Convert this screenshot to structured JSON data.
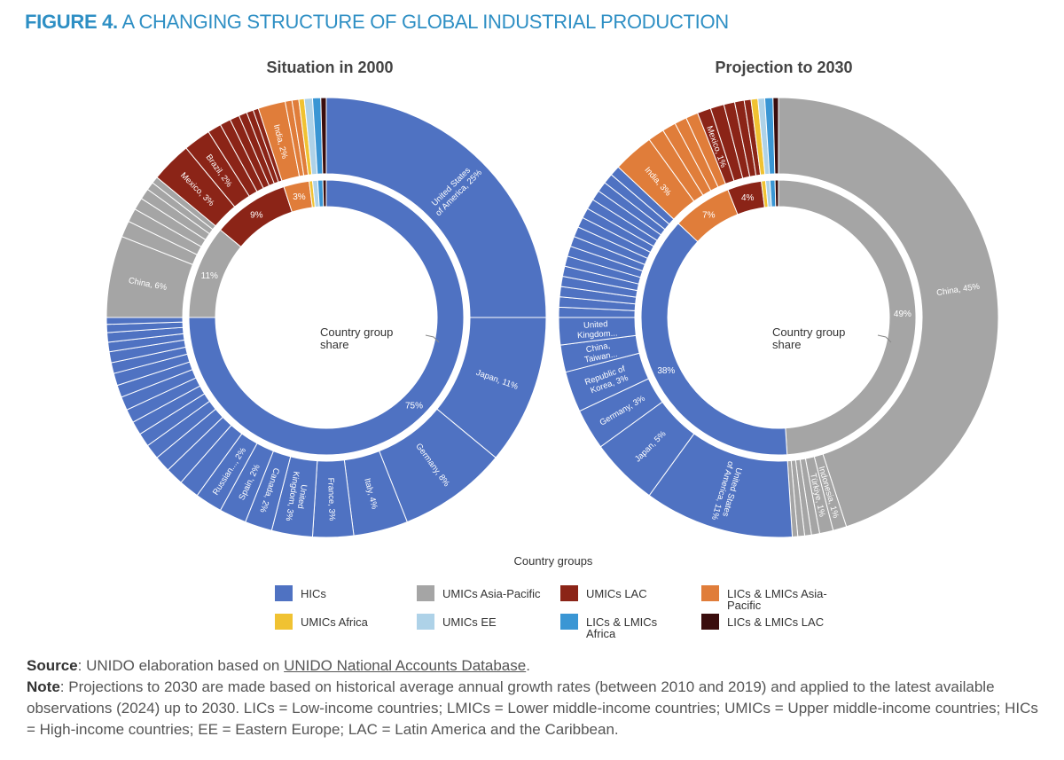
{
  "header": {
    "figure": "FIGURE 4.",
    "title": "A CHANGING STRUCTURE OF GLOBAL INDUSTRIAL PRODUCTION"
  },
  "chart_data": [
    {
      "type": "sunburst",
      "title": "Situation in 2000",
      "center_label": "Country group share",
      "groups": [
        {
          "name": "HICs",
          "value": 75,
          "value_label": "75%",
          "segments": {
            "labels": [
              "United States of America, 25%",
              "Japan, 11%",
              "Germany, 8%",
              "Italy, 4%",
              "France, 3%",
              "United Kingdom, 3%",
              "Canada, 2%",
              "Spain, 2%",
              "Russian..., 2%",
              null,
              null,
              null,
              null,
              null,
              null,
              null,
              null,
              null,
              null,
              null,
              null,
              null,
              null,
              null,
              null
            ],
            "values": [
              25,
              11,
              8,
              4,
              3,
              3,
              2,
              2,
              2,
              1.5,
              1.3,
              1.2,
              1.1,
              1,
              1,
              1,
              1,
              0.9,
              0.9,
              0.8,
              0.8,
              0.7,
              0.7,
              0.6,
              0.5
            ]
          }
        },
        {
          "name": "UMICs Asia-Pacific",
          "value": 11,
          "value_label": "11%",
          "segments": {
            "labels": [
              "China, 6%",
              null,
              null,
              null,
              null,
              null,
              null
            ],
            "values": [
              6,
              1.2,
              1,
              0.9,
              0.8,
              0.6,
              0.5
            ]
          }
        },
        {
          "name": "UMICs LAC",
          "value": 9,
          "value_label": "9%",
          "segments": {
            "labels": [
              "Mexico, 3%",
              "Brazil, 2%",
              null,
              null,
              null,
              null,
              null,
              null
            ],
            "values": [
              3,
              2,
              1,
              0.8,
              0.7,
              0.6,
              0.5,
              0.4
            ]
          }
        },
        {
          "name": "LICs & LMICs Asia-Pacific",
          "value": 3,
          "value_label": "3%",
          "segments": {
            "labels": [
              "India, 2%",
              null,
              null
            ],
            "values": [
              2,
              0.5,
              0.5
            ]
          }
        },
        {
          "name": "UMICs Africa",
          "value": 0.4,
          "value_label": null,
          "segments": {
            "labels": [
              null
            ],
            "values": [
              0.4
            ]
          }
        },
        {
          "name": "UMICs EE",
          "value": 0.6,
          "value_label": null,
          "segments": {
            "labels": [
              null
            ],
            "values": [
              0.6
            ]
          }
        },
        {
          "name": "LICs & LMICs Africa",
          "value": 0.6,
          "value_label": null,
          "segments": {
            "labels": [
              null
            ],
            "values": [
              0.6
            ]
          }
        },
        {
          "name": "LICs & LMICs LAC",
          "value": 0.4,
          "value_label": null,
          "segments": {
            "labels": [
              null
            ],
            "values": [
              0.4
            ]
          }
        }
      ]
    },
    {
      "type": "sunburst",
      "title": "Projection to 2030",
      "center_label": "Country group share",
      "groups": [
        {
          "name": "UMICs Asia-Pacific",
          "value": 49,
          "value_label": "49%",
          "segments": {
            "labels": [
              "China, 45%",
              "Indonesia, 1%",
              "Türkiye, 1%",
              null,
              null,
              null,
              null
            ],
            "values": [
              45,
              1,
              1,
              0.6,
              0.5,
              0.5,
              0.4
            ]
          }
        },
        {
          "name": "HICs",
          "value": 38,
          "value_label": "38%",
          "segments": {
            "labels": [
              "United States of America, 11%",
              "Japan, 5%",
              "Germany, 3%",
              "Republic of Korea, 3%",
              "China, Taiwan...",
              "United Kingdom...",
              null,
              null,
              null,
              null,
              null,
              null,
              null,
              null,
              null,
              null,
              null,
              null,
              null,
              null,
              null,
              null
            ],
            "values": [
              11,
              5,
              3,
              3,
              2,
              2,
              0.75,
              0.75,
              0.75,
              0.75,
              0.75,
              0.75,
              0.75,
              0.75,
              0.75,
              0.75,
              0.75,
              0.75,
              0.75,
              0.75,
              0.75,
              0.75
            ]
          }
        },
        {
          "name": "LICs & LMICs Asia-Pacific",
          "value": 7,
          "value_label": "7%",
          "segments": {
            "labels": [
              "India, 3%",
              null,
              null,
              null,
              null
            ],
            "values": [
              3,
              1.2,
              1,
              0.9,
              0.9
            ]
          }
        },
        {
          "name": "UMICs LAC",
          "value": 4,
          "value_label": "4%",
          "segments": {
            "labels": [
              "Mexico, 1%",
              null,
              null,
              null,
              null
            ],
            "values": [
              1,
              1,
              0.8,
              0.7,
              0.5
            ]
          }
        },
        {
          "name": "UMICs Africa",
          "value": 0.5,
          "value_label": null,
          "segments": {
            "labels": [
              null
            ],
            "values": [
              0.5
            ]
          }
        },
        {
          "name": "UMICs EE",
          "value": 0.5,
          "value_label": null,
          "segments": {
            "labels": [
              null
            ],
            "values": [
              0.5
            ]
          }
        },
        {
          "name": "LICs & LMICs Africa",
          "value": 0.6,
          "value_label": null,
          "segments": {
            "labels": [
              null
            ],
            "values": [
              0.6
            ]
          }
        },
        {
          "name": "LICs & LMICs LAC",
          "value": 0.4,
          "value_label": null,
          "segments": {
            "labels": [
              null
            ],
            "values": [
              0.4
            ]
          }
        }
      ]
    }
  ],
  "legend": {
    "title": "Country groups",
    "items": [
      {
        "name": "HICs",
        "color": "#4f72c2"
      },
      {
        "name": "UMICs Asia-Pacific",
        "color": "#a5a5a5"
      },
      {
        "name": "UMICs LAC",
        "color": "#8b2417"
      },
      {
        "name": "LICs & LMICs Asia-Pacific",
        "color": "#e07d3a"
      },
      {
        "name": "UMICs Africa",
        "color": "#f0c232"
      },
      {
        "name": "UMICs EE",
        "color": "#aed2e8"
      },
      {
        "name": "LICs & LMICs Africa",
        "color": "#3a96d4"
      },
      {
        "name": "LICs & LMICs LAC",
        "color": "#3a0d0d"
      }
    ]
  },
  "source": {
    "label": "Source",
    "text": ": UNIDO elaboration based on ",
    "link": "UNIDO National Accounts Database",
    "end": "."
  },
  "note": {
    "label": "Note",
    "text": ": Projections to 2030 are made based on historical average annual growth rates (between 2010 and 2019) and applied to the latest available observations (2024) up to 2030. LICs = Low-income countries; LMICs = Lower middle-income countries; UMICs = Upper middle-income countries; HICs = High-income countries; EE = Eastern Europe; LAC = Latin America and the Caribbean."
  }
}
